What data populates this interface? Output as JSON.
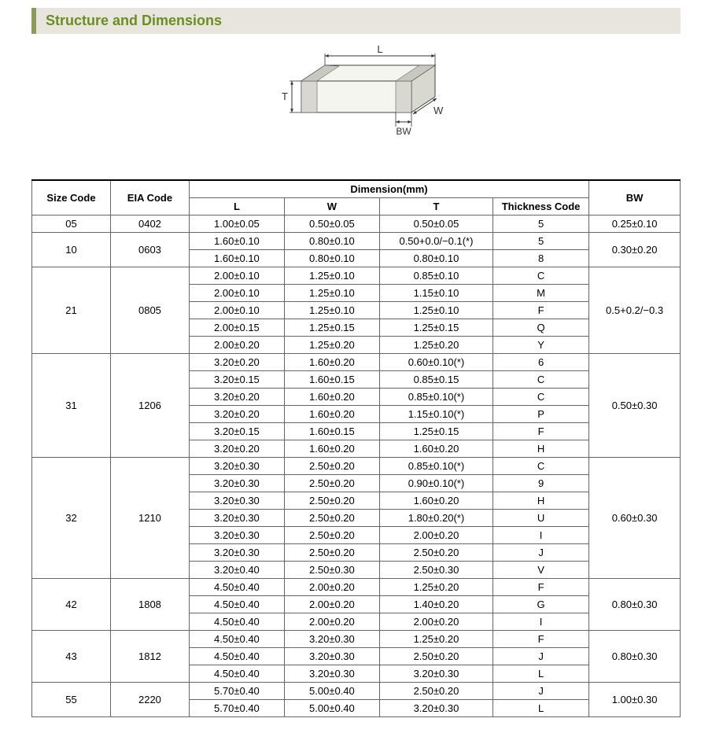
{
  "header": {
    "title": "Structure and Dimensions"
  },
  "diagram": {
    "labels": {
      "L": "L",
      "W": "W",
      "T": "T",
      "BW": "BW"
    },
    "stroke": "#444",
    "fill": "#f5f5f0",
    "dark_fill": "#d8d8d0",
    "arrow_stroke": "#333"
  },
  "table": {
    "header_group_label": "Dimension(mm)",
    "columns": [
      "Size Code",
      "EIA Code",
      "L",
      "W",
      "T",
      "Thickness  Code",
      "BW"
    ],
    "groups": [
      {
        "size_code": "05",
        "eia_code": "0402",
        "bw": "0.25±0.10",
        "rows": [
          {
            "L": "1.00±0.05",
            "W": "0.50±0.05",
            "T": "0.50±0.05",
            "TC": "5"
          }
        ]
      },
      {
        "size_code": "10",
        "eia_code": "0603",
        "bw": "0.30±0.20",
        "rows": [
          {
            "L": "1.60±0.10",
            "W": "0.80±0.10",
            "T": "0.50+0.0/−0.1(*)",
            "TC": "5"
          },
          {
            "L": "1.60±0.10",
            "W": "0.80±0.10",
            "T": "0.80±0.10",
            "TC": "8"
          }
        ]
      },
      {
        "size_code": "21",
        "eia_code": "0805",
        "bw": "0.5+0.2/−0.3",
        "rows": [
          {
            "L": "2.00±0.10",
            "W": "1.25±0.10",
            "T": "0.85±0.10",
            "TC": "C"
          },
          {
            "L": "2.00±0.10",
            "W": "1.25±0.10",
            "T": "1.15±0.10",
            "TC": "M"
          },
          {
            "L": "2.00±0.10",
            "W": "1.25±0.10",
            "T": "1.25±0.10",
            "TC": "F"
          },
          {
            "L": "2.00±0.15",
            "W": "1.25±0.15",
            "T": "1.25±0.15",
            "TC": "Q"
          },
          {
            "L": "2.00±0.20",
            "W": "1.25±0.20",
            "T": "1.25±0.20",
            "TC": "Y"
          }
        ]
      },
      {
        "size_code": "31",
        "eia_code": "1206",
        "bw": "0.50±0.30",
        "rows": [
          {
            "L": "3.20±0.20",
            "W": "1.60±0.20",
            "T": "0.60±0.10(*)",
            "TC": "6"
          },
          {
            "L": "3.20±0.15",
            "W": "1.60±0.15",
            "T": "0.85±0.15",
            "TC": "C"
          },
          {
            "L": "3.20±0.20",
            "W": "1.60±0.20",
            "T": "0.85±0.10(*)",
            "TC": "C"
          },
          {
            "L": "3.20±0.20",
            "W": "1.60±0.20",
            "T": "1.15±0.10(*)",
            "TC": "P"
          },
          {
            "L": "3.20±0.15",
            "W": "1.60±0.15",
            "T": "1.25±0.15",
            "TC": "F"
          },
          {
            "L": "3.20±0.20",
            "W": "1.60±0.20",
            "T": "1.60±0.20",
            "TC": "H"
          }
        ]
      },
      {
        "size_code": "32",
        "eia_code": "1210",
        "bw": "0.60±0.30",
        "rows": [
          {
            "L": "3.20±0.30",
            "W": "2.50±0.20",
            "T": "0.85±0.10(*)",
            "TC": "C"
          },
          {
            "L": "3.20±0.30",
            "W": "2.50±0.20",
            "T": "0.90±0.10(*)",
            "TC": "9"
          },
          {
            "L": "3.20±0.30",
            "W": "2.50±0.20",
            "T": "1.60±0.20",
            "TC": "H"
          },
          {
            "L": "3.20±0.30",
            "W": "2.50±0.20",
            "T": "1.80±0.20(*)",
            "TC": "U"
          },
          {
            "L": "3.20±0.30",
            "W": "2.50±0.20",
            "T": "2.00±0.20",
            "TC": "I"
          },
          {
            "L": "3.20±0.30",
            "W": "2.50±0.20",
            "T": "2.50±0.20",
            "TC": "J"
          },
          {
            "L": "3.20±0.40",
            "W": "2.50±0.30",
            "T": "2.50±0.30",
            "TC": "V"
          }
        ]
      },
      {
        "size_code": "42",
        "eia_code": "1808",
        "bw": "0.80±0.30",
        "rows": [
          {
            "L": "4.50±0.40",
            "W": "2.00±0.20",
            "T": "1.25±0.20",
            "TC": "F"
          },
          {
            "L": "4.50±0.40",
            "W": "2.00±0.20",
            "T": "1.40±0.20",
            "TC": "G"
          },
          {
            "L": "4.50±0.40",
            "W": "2.00±0.20",
            "T": "2.00±0.20",
            "TC": "I"
          }
        ]
      },
      {
        "size_code": "43",
        "eia_code": "1812",
        "bw": "0.80±0.30",
        "rows": [
          {
            "L": "4.50±0.40",
            "W": "3.20±0.30",
            "T": "1.25±0.20",
            "TC": "F"
          },
          {
            "L": "4.50±0.40",
            "W": "3.20±0.30",
            "T": "2.50±0.20",
            "TC": "J"
          },
          {
            "L": "4.50±0.40",
            "W": "3.20±0.30",
            "T": "3.20±0.30",
            "TC": "L"
          }
        ]
      },
      {
        "size_code": "55",
        "eia_code": "2220",
        "bw": "1.00±0.30",
        "rows": [
          {
            "L": "5.70±0.40",
            "W": "5.00±0.40",
            "T": "2.50±0.20",
            "TC": "J"
          },
          {
            "L": "5.70±0.40",
            "W": "5.00±0.40",
            "T": "3.20±0.30",
            "TC": "L"
          }
        ]
      }
    ]
  }
}
